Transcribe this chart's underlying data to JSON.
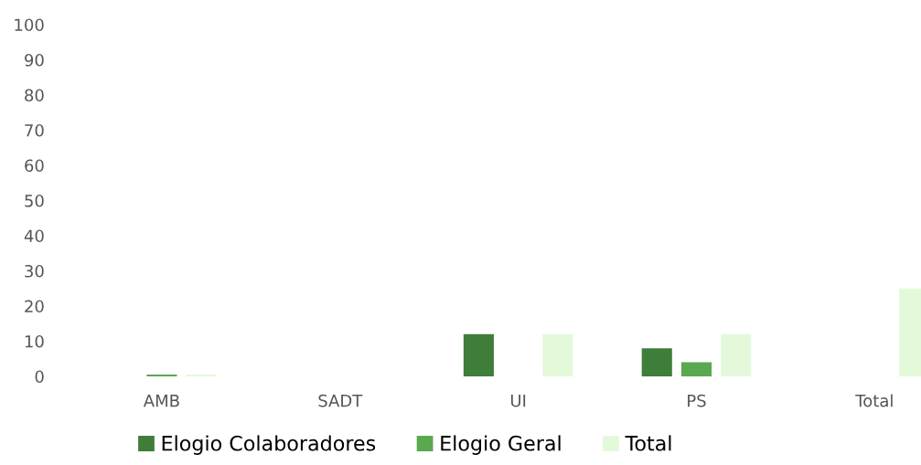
{
  "chart_data": {
    "type": "bar",
    "categories": [
      "AMB",
      "SADT",
      "UI",
      "PS",
      "Total"
    ],
    "series": [
      {
        "name": "Elogio Colaboradores",
        "color": "#3f7d3a",
        "values": [
          null,
          null,
          12,
          8,
          null
        ]
      },
      {
        "name": "Elogio Geral",
        "color": "#5aa84f",
        "values": [
          0.5,
          null,
          null,
          4,
          null
        ]
      },
      {
        "name": "Total",
        "color": "#e4f9da",
        "values": [
          0.5,
          null,
          12,
          12,
          25
        ]
      }
    ],
    "ylim": [
      0,
      100
    ],
    "yticks": [
      0,
      10,
      20,
      30,
      40,
      50,
      60,
      70,
      80,
      90,
      100
    ],
    "grid": false,
    "legend": "bottom"
  }
}
